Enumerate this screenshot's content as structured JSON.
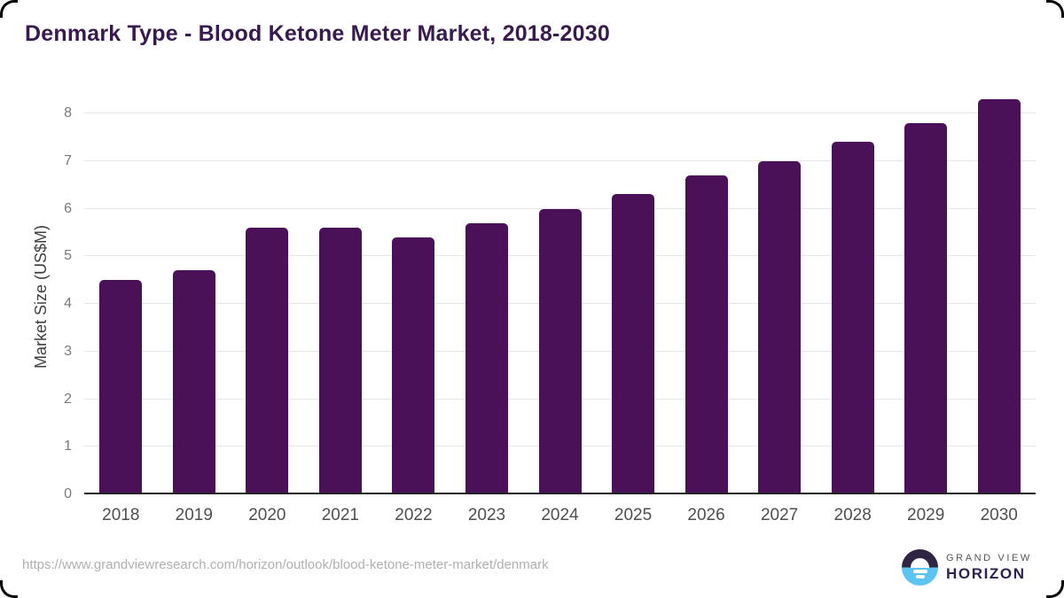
{
  "page": {
    "title": "Denmark Type - Blood Ketone Meter Market, 2018-2030",
    "source_url": "https://www.grandviewresearch.com/horizon/outlook/blood-ketone-meter-market/denmark"
  },
  "logo": {
    "line1": "GRAND VIEW",
    "line2": "HORIZON"
  },
  "colors": {
    "bar": "#4a1158",
    "title": "#391a4f",
    "gridline": "#e7e7e7",
    "baseline": "#222222",
    "y_tick": "#7a7a7a",
    "x_tick": "#4f4f4f",
    "logo_top": "#2e2444",
    "logo_bottom": "#5bc4f0"
  },
  "chart_data": {
    "type": "bar",
    "title": "Denmark Type - Blood Ketone Meter Market, 2018-2030",
    "categories": [
      "2018",
      "2019",
      "2020",
      "2021",
      "2022",
      "2023",
      "2024",
      "2025",
      "2026",
      "2027",
      "2028",
      "2029",
      "2030"
    ],
    "values": [
      4.5,
      4.7,
      5.6,
      5.6,
      5.4,
      5.7,
      6.0,
      6.3,
      6.7,
      7.0,
      7.4,
      7.8,
      8.3
    ],
    "xlabel": "",
    "ylabel": "Market Size (US$M)",
    "ylim": [
      0,
      8
    ],
    "yticks": [
      0,
      1,
      2,
      3,
      4,
      5,
      6,
      7,
      8
    ],
    "grid": "horizontal",
    "legend": "none",
    "bar_color": "#4a1158"
  }
}
